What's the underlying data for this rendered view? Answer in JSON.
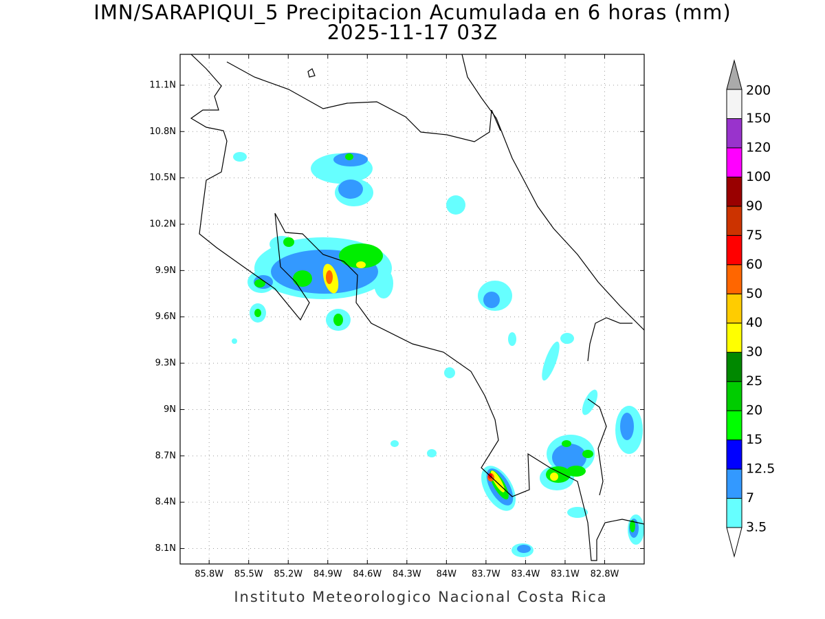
{
  "title": "IMN/SARAPIQUI_5 Precipitacion Acumulada en 6 horas (mm)",
  "subtitle": "2025-11-17 03Z",
  "footer": "Instituto Meteorologico Nacional Costa Rica",
  "map": {
    "xlim": [
      -86.02,
      -82.5
    ],
    "ylim": [
      8.0,
      11.3
    ],
    "grid": true,
    "xticks": [
      {
        "value": -85.8,
        "label": "85.8W"
      },
      {
        "value": -85.5,
        "label": "85.5W"
      },
      {
        "value": -85.2,
        "label": "85.2W"
      },
      {
        "value": -84.9,
        "label": "84.9W"
      },
      {
        "value": -84.6,
        "label": "84.6W"
      },
      {
        "value": -84.3,
        "label": "84.3W"
      },
      {
        "value": -84.0,
        "label": "84W"
      },
      {
        "value": -83.7,
        "label": "83.7W"
      },
      {
        "value": -83.4,
        "label": "83.4W"
      },
      {
        "value": -83.1,
        "label": "83.1W"
      },
      {
        "value": -82.8,
        "label": "82.8W"
      }
    ],
    "yticks": [
      {
        "value": 11.1,
        "label": "11.1N"
      },
      {
        "value": 10.8,
        "label": "10.8N"
      },
      {
        "value": 10.5,
        "label": "10.5N"
      },
      {
        "value": 10.2,
        "label": "10.2N"
      },
      {
        "value": 9.9,
        "label": "9.9N"
      },
      {
        "value": 9.6,
        "label": "9.6N"
      },
      {
        "value": 9.3,
        "label": "9.3N"
      },
      {
        "value": 9.0,
        "label": "9N"
      },
      {
        "value": 8.7,
        "label": "8.7N"
      },
      {
        "value": 8.4,
        "label": "8.4N"
      },
      {
        "value": 8.1,
        "label": "8.1N"
      }
    ]
  },
  "colorbar": {
    "levels": [
      3.5,
      7,
      12.5,
      15,
      20,
      25,
      30,
      40,
      50,
      60,
      75,
      90,
      100,
      120,
      150,
      200
    ],
    "colors": [
      "#66ffff",
      "#3399ff",
      "#0000ff",
      "#00ff00",
      "#00cc00",
      "#008800",
      "#ffff00",
      "#ffcc00",
      "#ff6600",
      "#ff0000",
      "#cc3300",
      "#990000",
      "#ff00ff",
      "#9933cc",
      "#f4f4f4"
    ],
    "over_color": "#aaaaaa",
    "under_color": "#ffffff"
  }
}
